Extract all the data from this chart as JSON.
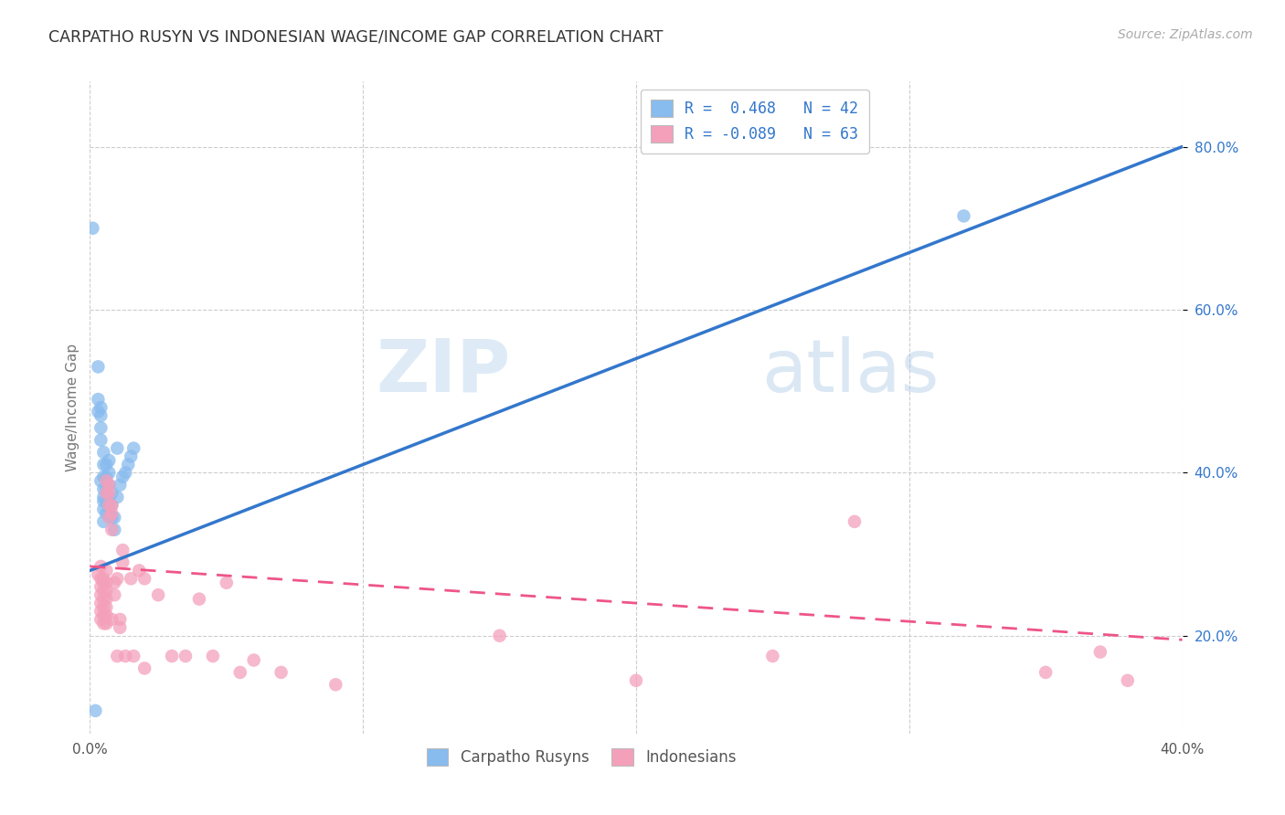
{
  "title": "CARPATHO RUSYN VS INDONESIAN WAGE/INCOME GAP CORRELATION CHART",
  "source": "Source: ZipAtlas.com",
  "ylabel": "Wage/Income Gap",
  "xlim": [
    0.0,
    0.4
  ],
  "ylim": [
    0.08,
    0.88
  ],
  "yticks": [
    0.2,
    0.4,
    0.6,
    0.8
  ],
  "xticks": [
    0.0,
    0.1,
    0.2,
    0.3,
    0.4
  ],
  "ytick_labels": [
    "20.0%",
    "40.0%",
    "60.0%",
    "80.0%"
  ],
  "color_blue": "#88bbee",
  "color_pink": "#f4a0bb",
  "line_blue": "#3377cc",
  "line_pink": "#ee5588",
  "watermark_zip": "ZIP",
  "watermark_atlas": "atlas",
  "blue_scatter": [
    [
      0.001,
      0.7
    ],
    [
      0.002,
      0.108
    ],
    [
      0.003,
      0.49
    ],
    [
      0.003,
      0.475
    ],
    [
      0.004,
      0.455
    ],
    [
      0.004,
      0.44
    ],
    [
      0.004,
      0.47
    ],
    [
      0.004,
      0.48
    ],
    [
      0.004,
      0.39
    ],
    [
      0.005,
      0.37
    ],
    [
      0.005,
      0.355
    ],
    [
      0.005,
      0.34
    ],
    [
      0.005,
      0.365
    ],
    [
      0.005,
      0.38
    ],
    [
      0.005,
      0.395
    ],
    [
      0.005,
      0.41
    ],
    [
      0.005,
      0.425
    ],
    [
      0.006,
      0.35
    ],
    [
      0.006,
      0.365
    ],
    [
      0.006,
      0.38
    ],
    [
      0.006,
      0.395
    ],
    [
      0.006,
      0.41
    ],
    [
      0.007,
      0.355
    ],
    [
      0.007,
      0.37
    ],
    [
      0.007,
      0.385
    ],
    [
      0.007,
      0.4
    ],
    [
      0.007,
      0.415
    ],
    [
      0.008,
      0.345
    ],
    [
      0.008,
      0.36
    ],
    [
      0.008,
      0.375
    ],
    [
      0.009,
      0.33
    ],
    [
      0.009,
      0.345
    ],
    [
      0.01,
      0.37
    ],
    [
      0.01,
      0.43
    ],
    [
      0.011,
      0.385
    ],
    [
      0.012,
      0.395
    ],
    [
      0.013,
      0.4
    ],
    [
      0.014,
      0.41
    ],
    [
      0.015,
      0.42
    ],
    [
      0.016,
      0.43
    ],
    [
      0.32,
      0.715
    ],
    [
      0.003,
      0.53
    ]
  ],
  "pink_scatter": [
    [
      0.003,
      0.275
    ],
    [
      0.004,
      0.285
    ],
    [
      0.004,
      0.27
    ],
    [
      0.004,
      0.26
    ],
    [
      0.004,
      0.25
    ],
    [
      0.004,
      0.24
    ],
    [
      0.004,
      0.23
    ],
    [
      0.004,
      0.22
    ],
    [
      0.005,
      0.265
    ],
    [
      0.005,
      0.255
    ],
    [
      0.005,
      0.245
    ],
    [
      0.005,
      0.235
    ],
    [
      0.005,
      0.225
    ],
    [
      0.005,
      0.215
    ],
    [
      0.005,
      0.27
    ],
    [
      0.006,
      0.28
    ],
    [
      0.006,
      0.265
    ],
    [
      0.006,
      0.255
    ],
    [
      0.006,
      0.245
    ],
    [
      0.006,
      0.235
    ],
    [
      0.006,
      0.225
    ],
    [
      0.006,
      0.215
    ],
    [
      0.006,
      0.39
    ],
    [
      0.006,
      0.375
    ],
    [
      0.007,
      0.375
    ],
    [
      0.007,
      0.36
    ],
    [
      0.007,
      0.345
    ],
    [
      0.007,
      0.385
    ],
    [
      0.008,
      0.33
    ],
    [
      0.008,
      0.22
    ],
    [
      0.008,
      0.35
    ],
    [
      0.008,
      0.36
    ],
    [
      0.009,
      0.265
    ],
    [
      0.009,
      0.25
    ],
    [
      0.01,
      0.27
    ],
    [
      0.01,
      0.175
    ],
    [
      0.011,
      0.22
    ],
    [
      0.011,
      0.21
    ],
    [
      0.012,
      0.29
    ],
    [
      0.012,
      0.305
    ],
    [
      0.013,
      0.175
    ],
    [
      0.015,
      0.27
    ],
    [
      0.016,
      0.175
    ],
    [
      0.018,
      0.28
    ],
    [
      0.02,
      0.16
    ],
    [
      0.02,
      0.27
    ],
    [
      0.025,
      0.25
    ],
    [
      0.03,
      0.175
    ],
    [
      0.035,
      0.175
    ],
    [
      0.04,
      0.245
    ],
    [
      0.045,
      0.175
    ],
    [
      0.05,
      0.265
    ],
    [
      0.055,
      0.155
    ],
    [
      0.06,
      0.17
    ],
    [
      0.07,
      0.155
    ],
    [
      0.09,
      0.14
    ],
    [
      0.15,
      0.2
    ],
    [
      0.2,
      0.145
    ],
    [
      0.25,
      0.175
    ],
    [
      0.28,
      0.34
    ],
    [
      0.35,
      0.155
    ],
    [
      0.37,
      0.18
    ],
    [
      0.38,
      0.145
    ]
  ],
  "blue_line_x": [
    0.0,
    0.4
  ],
  "blue_line_y": [
    0.28,
    0.8
  ],
  "pink_line_x": [
    0.0,
    0.4
  ],
  "pink_line_y": [
    0.285,
    0.195
  ]
}
